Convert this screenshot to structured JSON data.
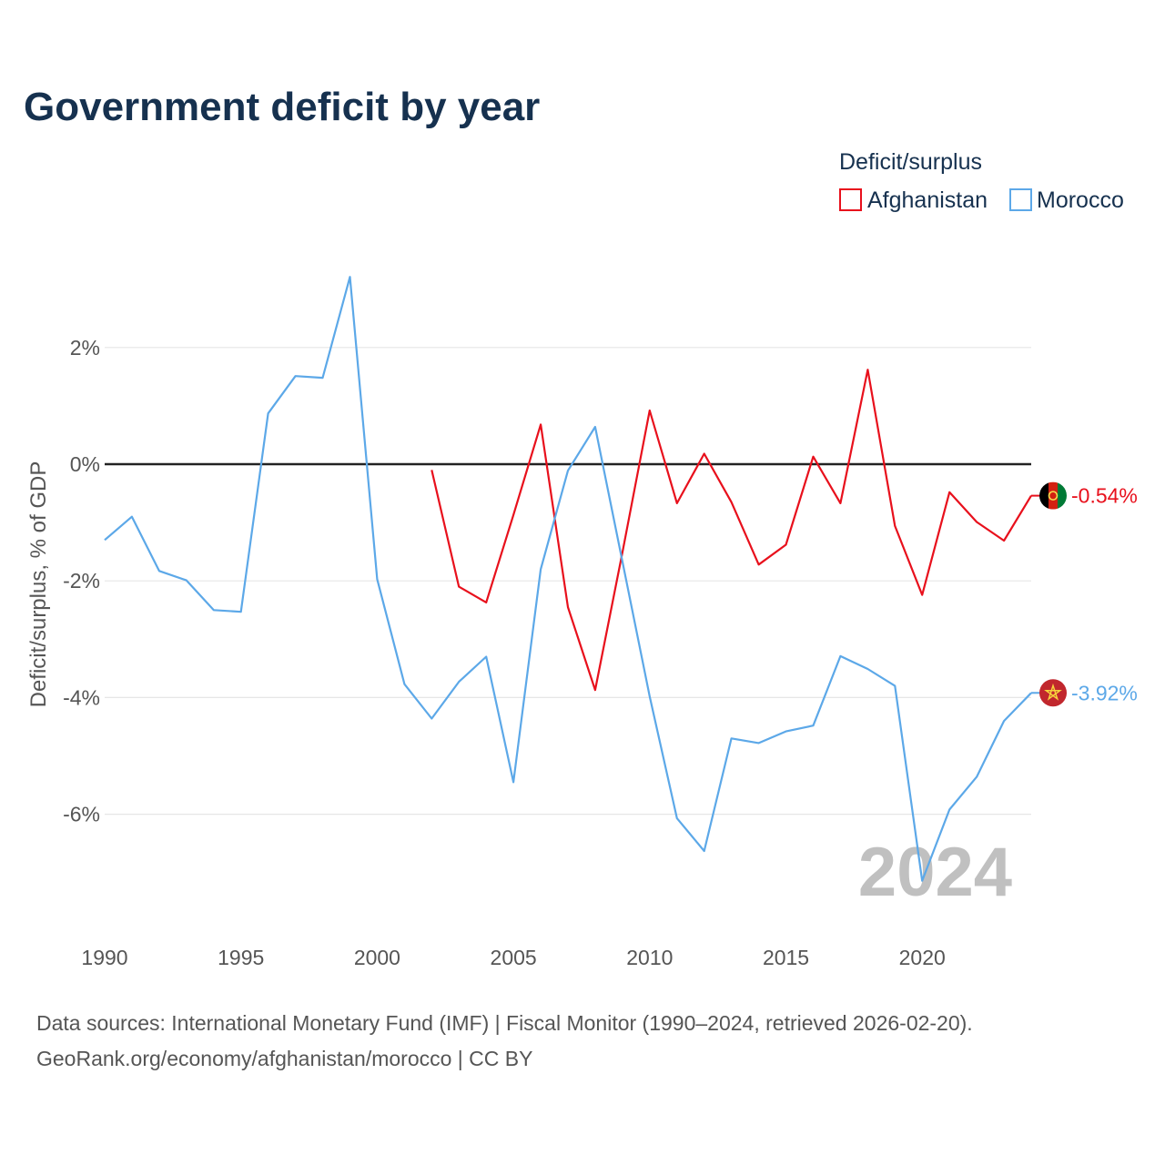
{
  "chart_data": {
    "type": "line",
    "title": "Government deficit by year",
    "ylabel": "Deficit/surplus, % of GDP",
    "xlabel": "",
    "xlim": [
      1990,
      2024
    ],
    "ylim": [
      -7.8,
      3.9
    ],
    "x_ticks": [
      1990,
      1995,
      2000,
      2005,
      2010,
      2015,
      2020
    ],
    "y_ticks": [
      {
        "value": 2,
        "label": "2%"
      },
      {
        "value": 0,
        "label": "0%"
      },
      {
        "value": -2,
        "label": "-2%"
      },
      {
        "value": -4,
        "label": "-4%"
      },
      {
        "value": -6,
        "label": "-6%"
      }
    ],
    "grid": true,
    "legend": {
      "title": "Deficit/surplus",
      "position": "top-right"
    },
    "year_watermark": "2024",
    "series": [
      {
        "name": "Afghanistan",
        "color": "#e8101c",
        "x": [
          2002,
          2003,
          2004,
          2005,
          2006,
          2007,
          2008,
          2009,
          2010,
          2011,
          2012,
          2013,
          2014,
          2015,
          2016,
          2017,
          2018,
          2019,
          2020,
          2021,
          2022,
          2023,
          2024
        ],
        "values": [
          -0.1,
          -2.1,
          -2.37,
          -0.87,
          0.68,
          -2.45,
          -3.87,
          -1.51,
          0.92,
          -0.67,
          0.18,
          -0.65,
          -1.72,
          -1.38,
          0.13,
          -0.67,
          1.62,
          -1.06,
          -2.24,
          -0.48,
          -0.99,
          -1.31,
          -0.54
        ],
        "end_label": "-0.54%",
        "flag": "afghanistan-flag-icon"
      },
      {
        "name": "Morocco",
        "color": "#5ca8e8",
        "x": [
          1990,
          1991,
          1992,
          1993,
          1994,
          1995,
          1996,
          1997,
          1998,
          1999,
          2000,
          2001,
          2002,
          2003,
          2004,
          2005,
          2006,
          2007,
          2008,
          2009,
          2010,
          2011,
          2012,
          2013,
          2014,
          2015,
          2016,
          2017,
          2018,
          2019,
          2020,
          2021,
          2022,
          2023,
          2024
        ],
        "values": [
          -1.3,
          -0.9,
          -1.83,
          -1.99,
          -2.5,
          -2.53,
          0.87,
          1.51,
          1.48,
          3.21,
          -1.97,
          -3.77,
          -4.36,
          -3.73,
          -3.3,
          -5.45,
          -1.8,
          -0.11,
          0.64,
          -1.67,
          -3.98,
          -6.07,
          -6.63,
          -4.7,
          -4.78,
          -4.58,
          -4.48,
          -3.29,
          -3.51,
          -3.8,
          -7.14,
          -5.92,
          -5.36,
          -4.4,
          -3.92
        ],
        "end_label": "-3.92%",
        "flag": "morocco-flag-icon"
      }
    ]
  },
  "footer": {
    "source": "Data sources: International Monetary Fund (IMF) | Fiscal Monitor (1990–2024, retrieved 2026-02-20).",
    "credit": "GeoRank.org/economy/afghanistan/morocco | CC BY"
  },
  "colors": {
    "title": "#16314f",
    "axis_text": "#555555",
    "grid": "#e6e6e6",
    "zero_line": "#222222",
    "watermark": "#c0c0c0"
  }
}
